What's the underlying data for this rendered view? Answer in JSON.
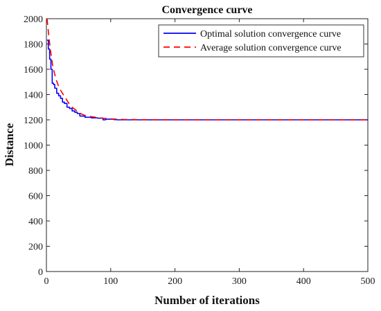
{
  "chart_data": {
    "type": "line",
    "title": "Convergence curve",
    "xlabel": "Number of iterations",
    "ylabel": "Distance",
    "xlim": [
      0,
      500
    ],
    "ylim": [
      0,
      2000
    ],
    "xticks": [
      0,
      100,
      200,
      300,
      400,
      500
    ],
    "yticks": [
      0,
      200,
      400,
      600,
      800,
      1000,
      1200,
      1400,
      1600,
      1800,
      2000
    ],
    "grid": false,
    "legend_position": "top-right",
    "series": [
      {
        "name": "Optimal solution convergence curve",
        "color": "#0000ff",
        "dash": "solid",
        "step": true,
        "x": [
          1,
          3,
          5,
          7,
          9,
          11,
          13,
          16,
          19,
          22,
          25,
          28,
          32,
          36,
          40,
          44,
          48,
          52,
          56,
          60,
          65,
          70,
          75,
          80,
          85,
          88,
          92,
          96,
          100,
          105,
          110,
          150,
          200,
          300,
          400,
          500
        ],
        "y": [
          1830,
          1760,
          1680,
          1600,
          1490,
          1480,
          1450,
          1410,
          1390,
          1370,
          1340,
          1330,
          1300,
          1290,
          1270,
          1260,
          1250,
          1230,
          1230,
          1220,
          1220,
          1215,
          1215,
          1213,
          1213,
          1200,
          1205,
          1205,
          1205,
          1202,
          1200,
          1200,
          1200,
          1200,
          1200,
          1200
        ]
      },
      {
        "name": "Average solution convergence curve",
        "color": "#ff0000",
        "dash": "dashed",
        "step": false,
        "x": [
          1,
          3,
          6,
          10,
          15,
          20,
          25,
          30,
          35,
          40,
          45,
          50,
          55,
          60,
          70,
          80,
          90,
          100,
          110,
          120,
          150,
          200,
          300,
          400,
          500
        ],
        "y": [
          2000,
          1900,
          1760,
          1620,
          1520,
          1450,
          1410,
          1370,
          1330,
          1300,
          1280,
          1260,
          1245,
          1235,
          1225,
          1218,
          1212,
          1208,
          1205,
          1203,
          1201,
          1200,
          1200,
          1200,
          1200
        ]
      }
    ]
  }
}
